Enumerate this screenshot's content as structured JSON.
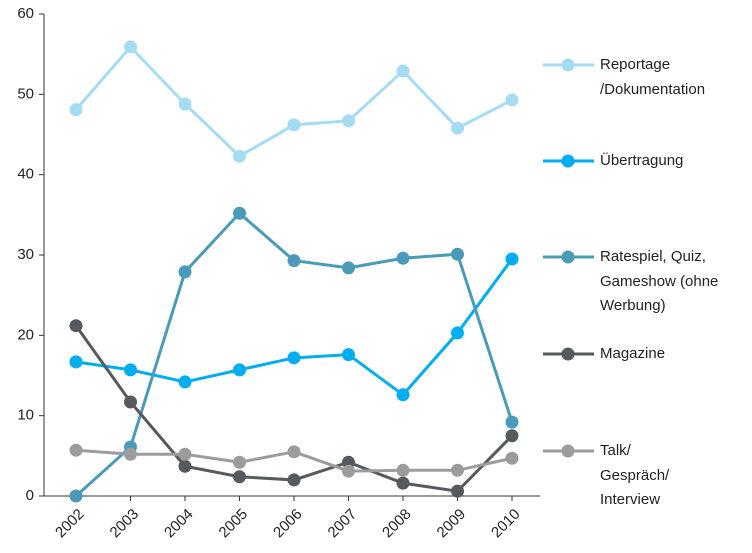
{
  "chart_data": {
    "type": "line",
    "categories": [
      "2002",
      "2003",
      "2004",
      "2005",
      "2006",
      "2007",
      "2008",
      "2009",
      "2010"
    ],
    "series": [
      {
        "name": "Reportage\n/Dokumentation",
        "color": "#a6dcf2",
        "values": [
          48.1,
          55.9,
          48.8,
          42.3,
          46.2,
          46.7,
          52.9,
          45.8,
          49.3
        ]
      },
      {
        "name": "Übertragung",
        "color": "#00aeef",
        "values": [
          16.7,
          15.7,
          14.2,
          15.7,
          17.2,
          17.6,
          12.6,
          20.3,
          29.5
        ]
      },
      {
        "name": "Ratespiel, Quiz,\nGameshow (ohne\nWerbung)",
        "color": "#4a9ab8",
        "values": [
          0,
          6.1,
          27.9,
          35.2,
          29.3,
          28.4,
          29.6,
          30.1,
          9.2
        ]
      },
      {
        "name": "Magazine",
        "color": "#555a5e",
        "values": [
          21.2,
          11.7,
          3.7,
          2.4,
          2.0,
          4.2,
          1.6,
          0.6,
          7.5
        ]
      },
      {
        "name": "Talk/\nGespräch/\nInterview",
        "color": "#9a9c9e",
        "values": [
          5.7,
          5.2,
          5.2,
          4.2,
          5.5,
          3.1,
          3.2,
          3.2,
          4.7
        ]
      }
    ],
    "ylim": [
      0,
      60
    ],
    "yticks": [
      0,
      10,
      20,
      30,
      40,
      50,
      60
    ],
    "legend": "right"
  }
}
